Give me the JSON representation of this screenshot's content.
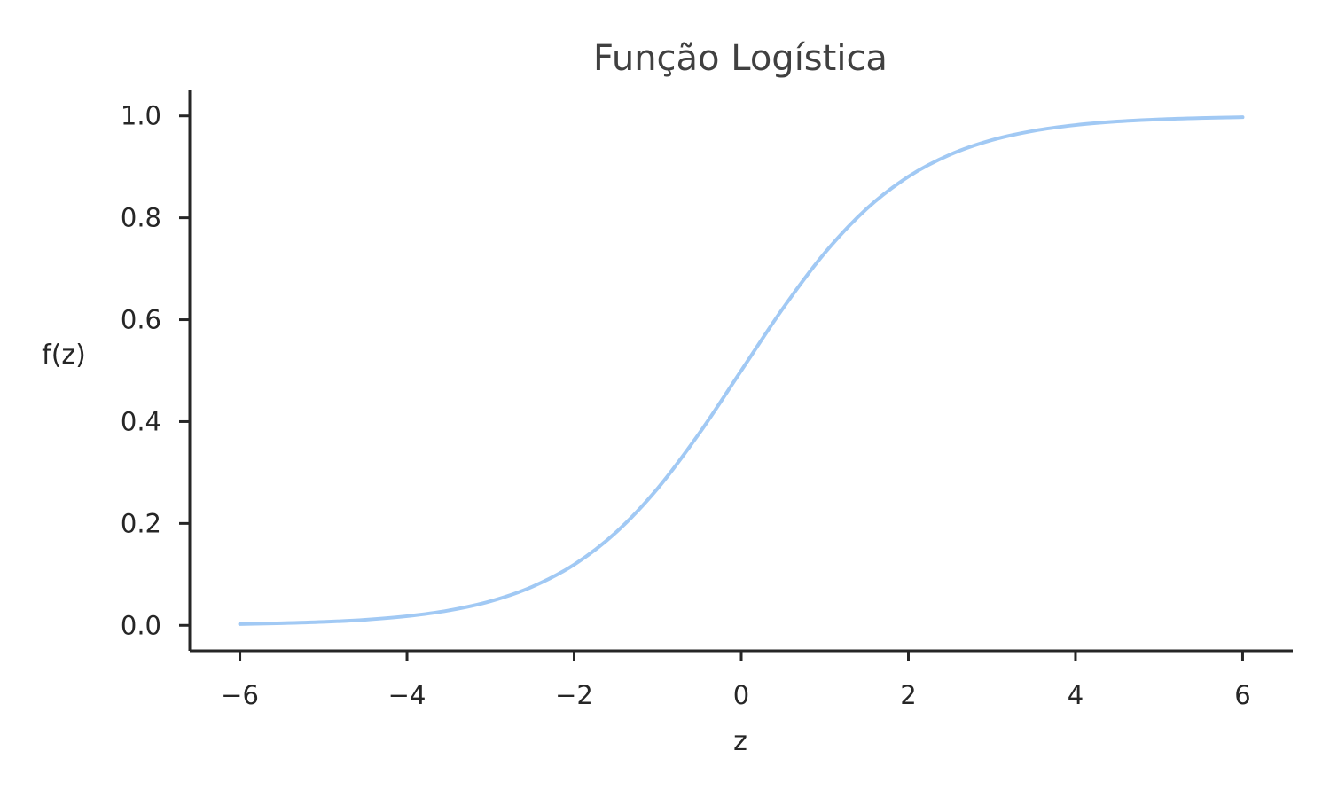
{
  "chart_data": {
    "type": "line",
    "title": "Função Logística",
    "xlabel": "z",
    "ylabel": "f(z)",
    "xlim": [
      -6.6,
      6.6
    ],
    "ylim": [
      -0.05,
      1.05
    ],
    "xticks": [
      -6,
      -4,
      -2,
      0,
      2,
      4,
      6
    ],
    "xtick_labels": [
      "−6",
      "−4",
      "−2",
      "0",
      "2",
      "4",
      "6"
    ],
    "yticks": [
      0.0,
      0.2,
      0.4,
      0.6,
      0.8,
      1.0
    ],
    "ytick_labels": [
      "0.0",
      "0.2",
      "0.4",
      "0.6",
      "0.8",
      "1.0"
    ],
    "grid": false,
    "series": [
      {
        "color": "#a1c9f4",
        "x": [
          -6,
          -5.5,
          -5,
          -4.5,
          -4,
          -3.5,
          -3,
          -2.5,
          -2,
          -1.5,
          -1,
          -0.5,
          0,
          0.5,
          1,
          1.5,
          2,
          2.5,
          3,
          3.5,
          4,
          4.5,
          5,
          5.5,
          6
        ],
        "y": [
          0.0025,
          0.0041,
          0.0067,
          0.011,
          0.018,
          0.0293,
          0.0474,
          0.0759,
          0.1192,
          0.1824,
          0.2689,
          0.3775,
          0.5,
          0.6225,
          0.7311,
          0.8176,
          0.8808,
          0.9241,
          0.9526,
          0.9707,
          0.982,
          0.989,
          0.9933,
          0.9959,
          0.9975
        ]
      }
    ]
  }
}
